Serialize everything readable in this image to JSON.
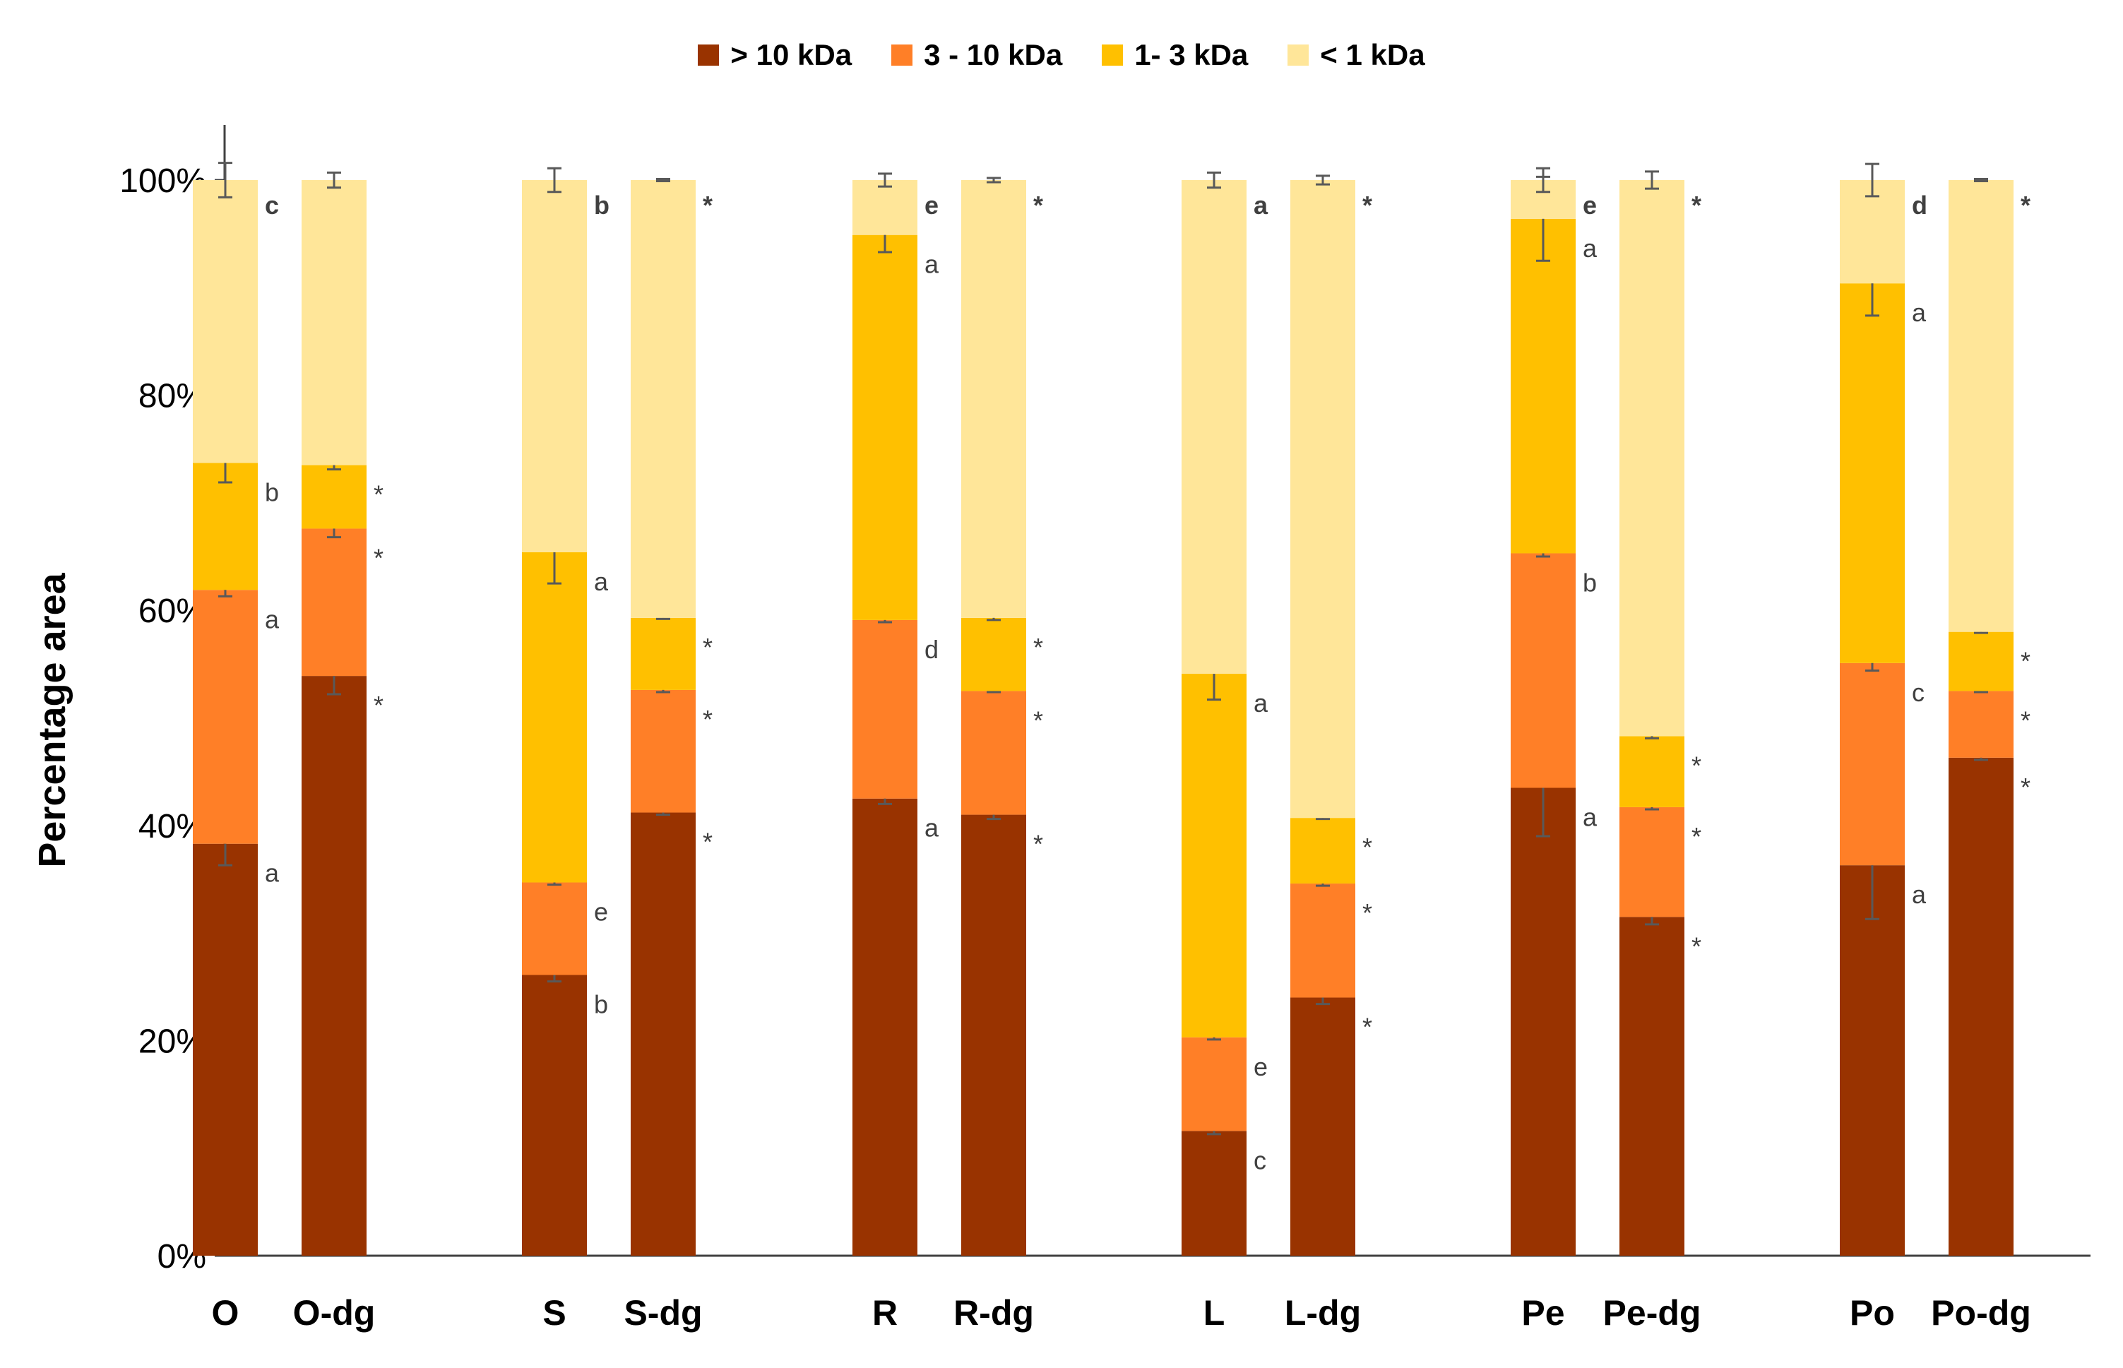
{
  "chart_data": {
    "type": "bar",
    "stacked": true,
    "ylabel": "Percentage area",
    "xlabel": "",
    "title": "",
    "ylim": [
      0,
      100
    ],
    "yticks": [
      "0%",
      "20%",
      "40%",
      "60%",
      "80%",
      "100%"
    ],
    "legend_position": "top-center",
    "categories": [
      "O",
      "O-dg",
      "S",
      "S-dg",
      "R",
      "R-dg",
      "L",
      "L-dg",
      "Pe",
      "Pe-dg",
      "Po",
      "Po-dg"
    ],
    "series": [
      {
        "name": "> 10 kDa",
        "color": "#993300",
        "values": [
          38.3,
          53.9,
          26.1,
          41.2,
          42.5,
          41.0,
          11.6,
          24.0,
          43.5,
          31.5,
          36.3,
          46.3
        ],
        "errors": [
          2.0,
          1.7,
          0.6,
          0.2,
          0.5,
          0.4,
          0.3,
          0.6,
          4.5,
          0.7,
          5.0,
          0.2
        ]
      },
      {
        "name": "3 - 10 kDa",
        "color": "#FF7F27",
        "values": [
          23.6,
          13.7,
          8.6,
          11.4,
          16.6,
          11.5,
          8.7,
          10.6,
          21.8,
          10.2,
          18.8,
          6.2
        ],
        "errors": [
          0.6,
          0.8,
          0.2,
          0.2,
          0.2,
          0.1,
          0.2,
          0.2,
          0.3,
          0.2,
          0.7,
          0.1
        ]
      },
      {
        "name": "1- 3 kDa",
        "color": "#FFC000",
        "values": [
          11.8,
          5.9,
          30.7,
          6.7,
          35.8,
          6.8,
          33.8,
          6.1,
          31.1,
          6.6,
          35.3,
          5.5
        ],
        "errors": [
          1.8,
          0.4,
          2.9,
          0.1,
          1.6,
          0.2,
          2.4,
          0.1,
          3.9,
          0.2,
          3.0,
          0.1
        ]
      },
      {
        "name": "< 1 kDa",
        "color": "#FFE699",
        "values": [
          26.3,
          26.5,
          34.6,
          40.7,
          5.1,
          40.7,
          45.9,
          59.3,
          3.6,
          51.7,
          9.6,
          42.0
        ],
        "errors": [
          1.6,
          0.7,
          1.1,
          0.1,
          0.6,
          0.2,
          0.7,
          0.4,
          1.1,
          0.8,
          1.5,
          0.1
        ]
      }
    ],
    "annotations": [
      [
        "a",
        "a",
        "b",
        "c"
      ],
      [
        "*",
        "*",
        "*",
        ""
      ],
      [
        "b",
        "e",
        "a",
        "b"
      ],
      [
        "*",
        "*",
        "*",
        "*"
      ],
      [
        "a",
        "d",
        "a",
        "e"
      ],
      [
        "*",
        "*",
        "*",
        "*"
      ],
      [
        "c",
        "e",
        "a",
        "a"
      ],
      [
        "*",
        "*",
        "*",
        "*"
      ],
      [
        "a",
        "b",
        "a",
        "e"
      ],
      [
        "*",
        "*",
        "*",
        "*"
      ],
      [
        "a",
        "c",
        "a",
        "d"
      ],
      [
        "*",
        "*",
        "*",
        "*"
      ]
    ]
  }
}
